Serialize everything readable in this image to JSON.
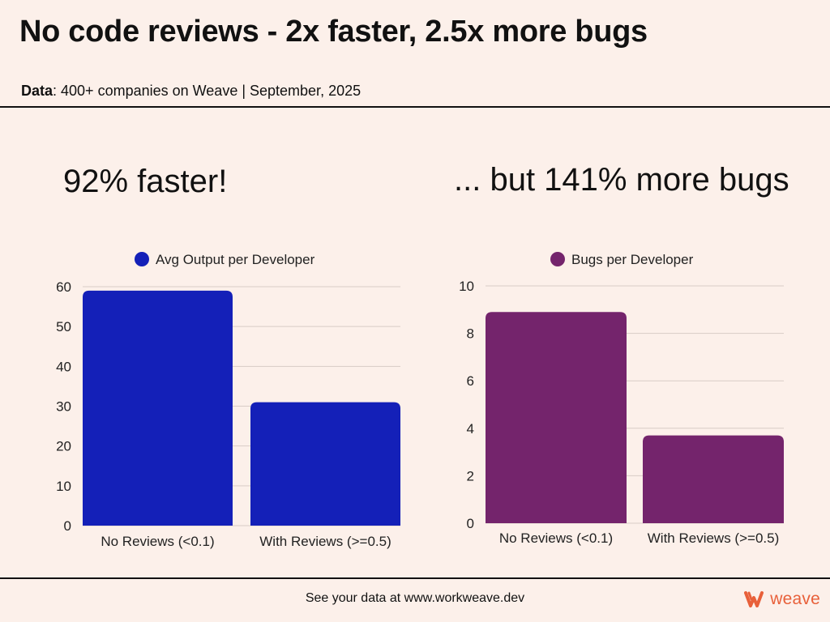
{
  "title": "No code reviews - 2x faster, 2.5x more bugs",
  "subtitle": {
    "label": "Data",
    "text": ": 400+ companies on Weave | September, 2025"
  },
  "left_headline": "92% faster!",
  "right_headline": "... but 141% more bugs",
  "footer_text": "See your data at www.workweave.dev",
  "brand_name": "weave",
  "colors": {
    "output": "#1420b8",
    "bugs": "#74246c",
    "brand": "#e8603a",
    "grid": "#d8ccc6"
  },
  "chart_data": [
    {
      "type": "bar",
      "legend": "Avg Output per Developer",
      "categories": [
        "No Reviews (<0.1)",
        "With Reviews (>=0.5)"
      ],
      "values": [
        59,
        31
      ],
      "ylim": [
        0,
        60
      ],
      "yticks": [
        0,
        10,
        20,
        30,
        40,
        50,
        60
      ],
      "xlabel": "",
      "ylabel": ""
    },
    {
      "type": "bar",
      "legend": "Bugs per Developer",
      "categories": [
        "No Reviews (<0.1)",
        "With Reviews (>=0.5)"
      ],
      "values": [
        8.9,
        3.7
      ],
      "ylim": [
        0,
        10
      ],
      "yticks": [
        0,
        2,
        4,
        6,
        8,
        10
      ],
      "xlabel": "",
      "ylabel": ""
    }
  ]
}
